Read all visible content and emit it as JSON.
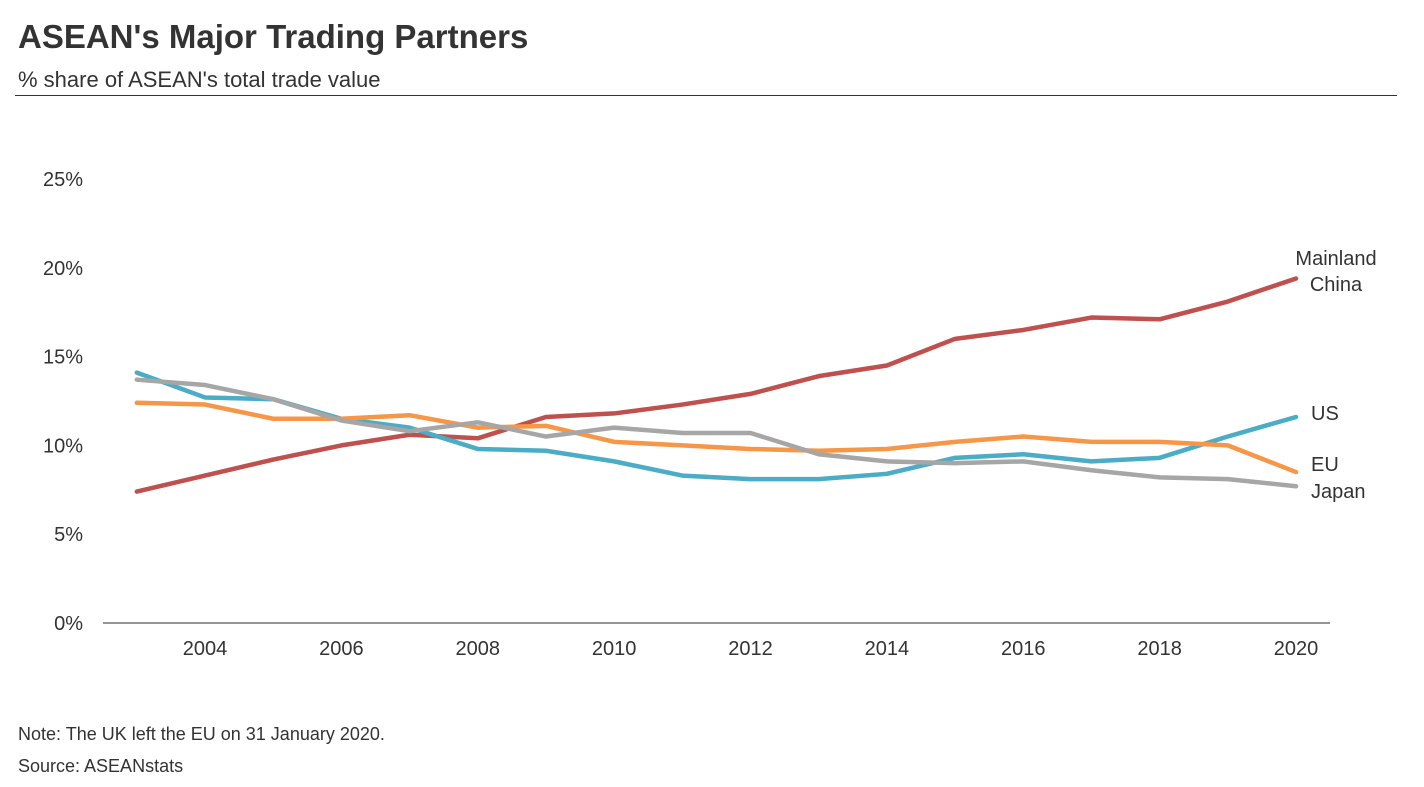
{
  "title": "ASEAN's Major Trading Partners",
  "subtitle": "% share of ASEAN's total trade value",
  "note": "Note: The UK left the EU on 31 January 2020.",
  "source": "Source: ASEANstats",
  "chart_data": {
    "type": "line",
    "title": "ASEAN's Major Trading Partners",
    "subtitle": "% share of ASEAN's total trade value",
    "x": [
      2003,
      2004,
      2005,
      2006,
      2007,
      2008,
      2009,
      2010,
      2011,
      2012,
      2013,
      2014,
      2015,
      2016,
      2017,
      2018,
      2019,
      2020
    ],
    "xticks": [
      "2004",
      "2006",
      "2008",
      "2010",
      "2012",
      "2014",
      "2016",
      "2018",
      "2020"
    ],
    "yticks": [
      "0%",
      "5%",
      "10%",
      "15%",
      "20%",
      "25%"
    ],
    "ylim": [
      0,
      25
    ],
    "grid": false,
    "legend": "direct labels at line ends",
    "series": [
      {
        "name": "Mainland China",
        "label_lines": [
          "Mainland",
          "China"
        ],
        "color": "#c0504d",
        "values": [
          7.4,
          8.3,
          9.2,
          10.0,
          10.6,
          10.4,
          11.6,
          11.8,
          12.3,
          12.9,
          13.9,
          14.5,
          16.0,
          16.5,
          17.2,
          17.1,
          18.1,
          19.4
        ]
      },
      {
        "name": "US",
        "label_lines": [
          "US"
        ],
        "color": "#4bacc6",
        "values": [
          14.1,
          12.7,
          12.6,
          11.5,
          11.0,
          9.8,
          9.7,
          9.1,
          8.3,
          8.1,
          8.1,
          8.4,
          9.3,
          9.5,
          9.1,
          9.3,
          10.5,
          11.6
        ]
      },
      {
        "name": "EU",
        "label_lines": [
          "EU"
        ],
        "color": "#f79646",
        "values": [
          12.4,
          12.3,
          11.5,
          11.5,
          11.7,
          11.0,
          11.1,
          10.2,
          10.0,
          9.8,
          9.7,
          9.8,
          10.2,
          10.5,
          10.2,
          10.2,
          10.0,
          8.5
        ]
      },
      {
        "name": "Japan",
        "label_lines": [
          "Japan"
        ],
        "color": "#a6a6a6",
        "values": [
          13.7,
          13.4,
          12.6,
          11.4,
          10.8,
          11.3,
          10.5,
          11.0,
          10.7,
          10.7,
          9.5,
          9.1,
          9.0,
          9.1,
          8.6,
          8.2,
          8.1,
          7.7
        ]
      }
    ]
  }
}
